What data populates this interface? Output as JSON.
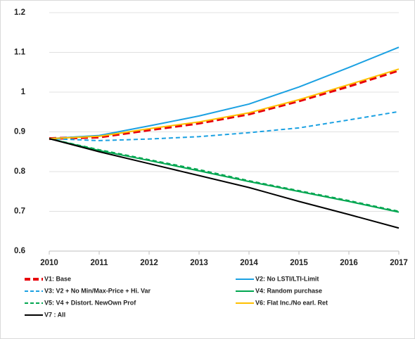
{
  "chart_data": {
    "type": "line",
    "x": [
      2010,
      2011,
      2012,
      2013,
      2014,
      2015,
      2016,
      2017
    ],
    "xlim": [
      2010,
      2017
    ],
    "xticks": [
      2010,
      2011,
      2012,
      2013,
      2014,
      2015,
      2016,
      2017
    ],
    "ylim": [
      0.6,
      1.2
    ],
    "yticks": [
      0.6,
      0.7,
      0.8,
      0.9,
      1,
      1.1,
      1.2
    ],
    "grid": true,
    "legend": "bottom",
    "series": [
      {
        "name": "V1: Base",
        "color": "#e8000b",
        "dashed": true,
        "values": [
          0.883,
          0.887,
          0.905,
          0.922,
          0.945,
          0.978,
          1.015,
          1.055
        ]
      },
      {
        "name": "V2: No LSTI/LTI-Limit",
        "color": "#1ba1e2",
        "dashed": false,
        "values": [
          0.883,
          0.891,
          0.915,
          0.94,
          0.97,
          1.013,
          1.062,
          1.113
        ]
      },
      {
        "name": "V3: V2 + No Min/Max-Price + Hi. Var",
        "color": "#1ba1e2",
        "dashed": true,
        "values": [
          0.883,
          0.878,
          0.882,
          0.888,
          0.898,
          0.91,
          0.93,
          0.951
        ]
      },
      {
        "name": "V4: Random purchase",
        "color": "#00a650",
        "dashed": false,
        "values": [
          0.883,
          0.853,
          0.828,
          0.802,
          0.775,
          0.75,
          0.725,
          0.698
        ]
      },
      {
        "name": "V5: V4 + Distort. NewOwn Prof",
        "color": "#00a650",
        "dashed": true,
        "values": [
          0.883,
          0.855,
          0.83,
          0.805,
          0.777,
          0.752,
          0.727,
          0.7
        ]
      },
      {
        "name": "V6: Flat Inc./No earl. Ret",
        "color": "#ffc000",
        "dashed": false,
        "values": [
          0.883,
          0.889,
          0.908,
          0.925,
          0.948,
          0.981,
          1.019,
          1.058
        ]
      },
      {
        "name": "V7 : All",
        "color": "#000000",
        "dashed": false,
        "values": [
          0.883,
          0.85,
          0.82,
          0.79,
          0.76,
          0.725,
          0.692,
          0.658
        ]
      }
    ]
  }
}
